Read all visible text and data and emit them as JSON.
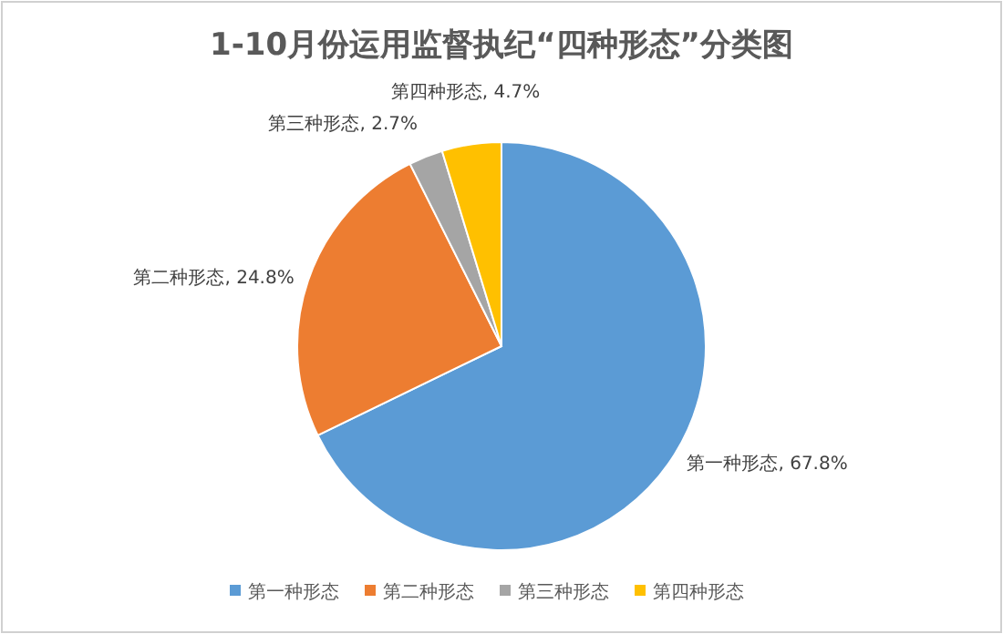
{
  "chart_data": {
    "type": "pie",
    "title": "1-10月份运用监督执纪“四种形态”分类图",
    "categories": [
      "第一种形态",
      "第二种形态",
      "第三种形态",
      "第四种形态"
    ],
    "values": [
      67.8,
      24.8,
      2.7,
      4.7
    ],
    "colors": [
      "#5b9bd5",
      "#ed7d31",
      "#a5a5a5",
      "#ffc000"
    ],
    "value_labels": [
      "第一种形态, 67.8%",
      "第二种形态, 24.8%",
      "第三种形态, 2.7%",
      "第四种形态, 4.7%"
    ],
    "legend": "bottom"
  }
}
